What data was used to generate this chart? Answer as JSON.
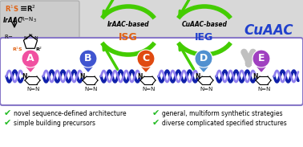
{
  "monomer_labels": [
    "A",
    "B",
    "C",
    "D",
    "E"
  ],
  "monomer_colors": [
    "#f050a0",
    "#4055d0",
    "#e04a10",
    "#5090d0",
    "#a040c0"
  ],
  "check_items_left": [
    "novel sequence-defined architecture",
    "simple building precursors"
  ],
  "check_items_right": [
    "general, multiform synthetic strategies",
    "diverse complicated specified structures"
  ],
  "check_color": "#22bb22",
  "arrow_green": "#44cc00",
  "orange_color": "#e06010",
  "blue_text": "#2040cc",
  "chain_purple": "#5040b0",
  "chain_light": "#9080ee",
  "chain_dark": "#1020aa",
  "bg_gray": "#d8d8d8",
  "rxn_bg": "#c8c8c8",
  "box_edge": "#8878c8",
  "isg_orange": "#e06010",
  "ieg_blue": "#2040cc"
}
